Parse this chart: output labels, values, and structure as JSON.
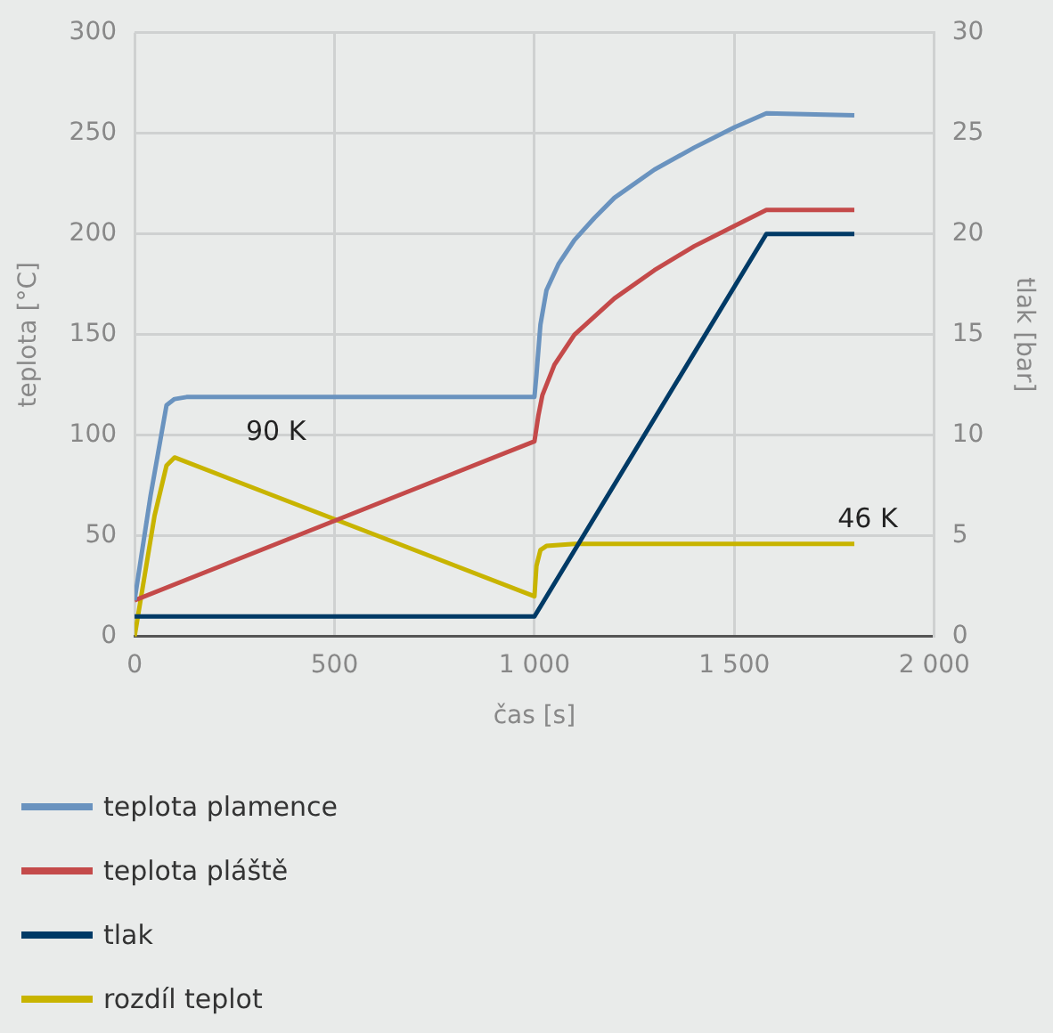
{
  "chart_data": {
    "type": "line",
    "xlabel": "čas [s]",
    "ylabel": "teplota [°C]",
    "y2label": "tlak [bar]",
    "xlim": [
      0,
      2000
    ],
    "xticks": [
      0,
      500,
      {
        "value": 1000,
        "label": "1 000"
      },
      {
        "value": 1500,
        "label": "1 500"
      },
      {
        "value": 2000,
        "label": "2 000"
      }
    ],
    "ylim": [
      0,
      300
    ],
    "yticks": [
      0,
      50,
      100,
      150,
      200,
      250,
      300
    ],
    "y2lim": [
      0,
      30
    ],
    "y2ticks": [
      0,
      5,
      10,
      15,
      20,
      25,
      30
    ],
    "grid": true,
    "legend": "bottom",
    "marker": "none",
    "line_style": "solid",
    "annotations": [
      {
        "text": "90 K",
        "x": 100,
        "y": 89
      },
      {
        "text": "46 K",
        "x": 1580,
        "y": 46
      }
    ],
    "series": [
      {
        "name": "teplota plamence",
        "color": "#6a93bf",
        "x": [
          0,
          40,
          80,
          100,
          130,
          200,
          1000,
          1005,
          1015,
          1030,
          1060,
          1100,
          1150,
          1200,
          1300,
          1400,
          1500,
          1580,
          1800
        ],
        "values": [
          18,
          70,
          115,
          118,
          119,
          119,
          119,
          130,
          155,
          172,
          185,
          197,
          208,
          218,
          232,
          243,
          253,
          260,
          259
        ]
      },
      {
        "name": "teplota pláště",
        "color": "#c44a4a",
        "x": [
          0,
          1000,
          1010,
          1020,
          1050,
          1100,
          1200,
          1300,
          1400,
          1500,
          1580,
          1800
        ],
        "values": [
          18,
          97,
          110,
          120,
          135,
          150,
          168,
          182,
          194,
          204,
          212,
          212
        ]
      },
      {
        "name": "tlak",
        "color": "#003a66",
        "axis": "y2",
        "x": [
          0,
          1000,
          1580,
          1800
        ],
        "values": [
          1,
          1,
          20,
          20
        ]
      },
      {
        "name": "rozdíl teplot",
        "color": "#c8b400",
        "x": [
          0,
          50,
          80,
          100,
          1000,
          1005,
          1015,
          1030,
          1100,
          1580,
          1800
        ],
        "values": [
          0,
          60,
          85,
          89,
          20,
          35,
          43,
          45,
          46,
          46,
          46
        ]
      }
    ]
  }
}
